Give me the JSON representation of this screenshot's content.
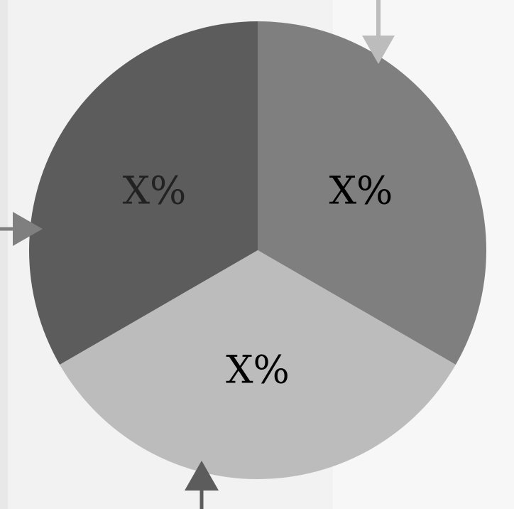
{
  "chart_data": {
    "type": "pie",
    "title": "",
    "slices": [
      {
        "label": "X%",
        "value": 33.33,
        "color": "#7f7f7f",
        "label_color": "#000000"
      },
      {
        "label": "X%",
        "value": 33.34,
        "color": "#bcbcbc",
        "label_color": "#000000"
      },
      {
        "label": "X%",
        "value": 33.33,
        "color": "#5c5c5c",
        "label_color": "#222222"
      }
    ],
    "start_angle_deg": 0,
    "direction": "clockwise",
    "legend": "none",
    "arrow_colors": [
      "#bcbcbc",
      "#7f7f7f",
      "#5c5c5c"
    ]
  }
}
